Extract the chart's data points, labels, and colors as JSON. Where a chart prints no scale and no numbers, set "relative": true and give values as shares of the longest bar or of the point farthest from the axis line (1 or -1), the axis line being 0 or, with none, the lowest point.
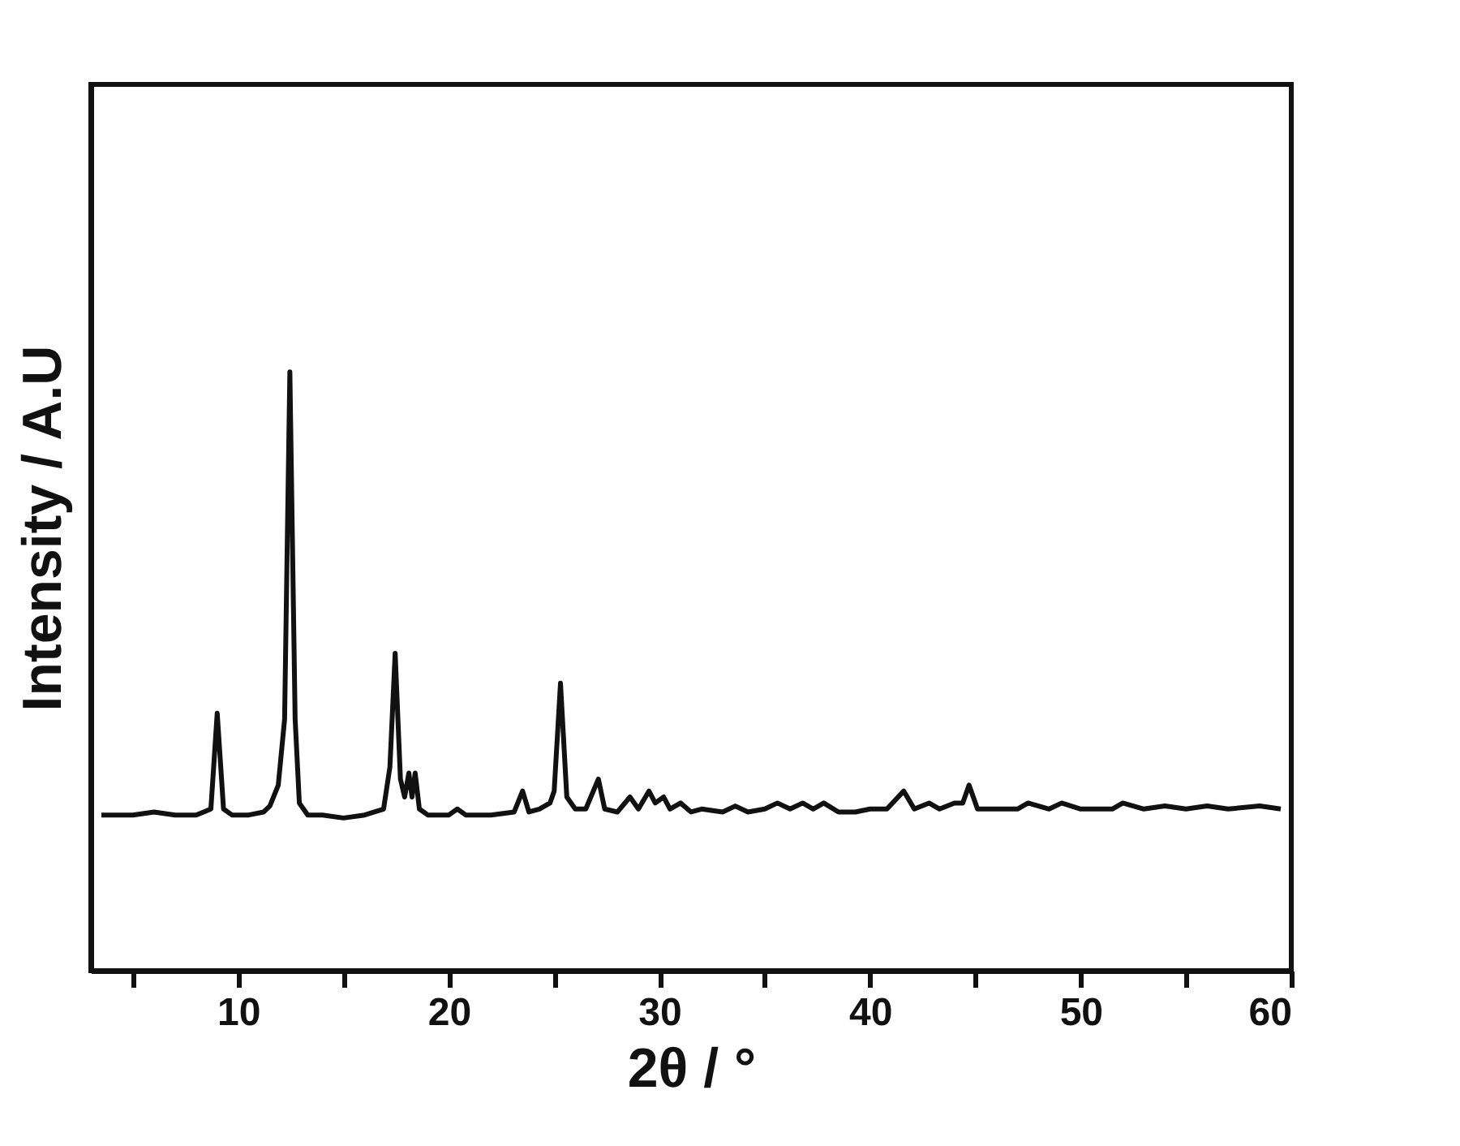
{
  "chart_data": {
    "type": "line",
    "xlabel": "2θ / °",
    "ylabel": "Intensity / A.U",
    "relative": true,
    "xlim": [
      3,
      60
    ],
    "xticks": [
      {
        "value": 5,
        "label": null
      },
      10,
      {
        "value": 15,
        "label": null
      },
      20,
      {
        "value": 25,
        "label": null
      },
      30,
      {
        "value": 35,
        "label": null
      },
      40,
      {
        "value": 45,
        "label": null
      },
      50,
      {
        "value": 55,
        "label": null
      },
      60
    ],
    "grid": false,
    "marker": "none",
    "line_style": "solid",
    "series": [
      {
        "color": "#111111",
        "x": [
          3.5,
          5,
          6,
          7,
          8,
          8.7,
          9.0,
          9.3,
          9.7,
          10.5,
          11.2,
          11.5,
          11.9,
          12.2,
          12.45,
          12.7,
          12.9,
          13.3,
          14,
          15,
          16,
          16.9,
          17.2,
          17.45,
          17.7,
          17.9,
          18.1,
          18.25,
          18.4,
          18.6,
          19,
          20,
          20.4,
          20.8,
          22,
          23.1,
          23.5,
          23.8,
          24.3,
          24.8,
          25.0,
          25.3,
          25.6,
          26,
          26.5,
          27.1,
          27.4,
          28,
          28.6,
          29,
          29.5,
          29.8,
          30.2,
          30.5,
          31,
          31.5,
          32,
          33,
          33.6,
          34.2,
          35,
          35.6,
          36.2,
          36.8,
          37.3,
          37.8,
          38.5,
          39.3,
          40,
          40.8,
          41.6,
          42.1,
          42.8,
          43.3,
          44.0,
          44.4,
          44.7,
          45.1,
          46,
          47,
          47.5,
          48.5,
          49.1,
          50,
          51.5,
          52,
          53,
          54,
          55,
          56,
          57,
          58.5,
          59.5
        ],
        "values": [
          0.26,
          0.26,
          0.265,
          0.26,
          0.26,
          0.27,
          0.43,
          0.27,
          0.26,
          0.26,
          0.265,
          0.275,
          0.31,
          0.42,
          1.0,
          0.42,
          0.28,
          0.26,
          0.26,
          0.255,
          0.26,
          0.27,
          0.34,
          0.53,
          0.32,
          0.29,
          0.33,
          0.29,
          0.33,
          0.27,
          0.26,
          0.26,
          0.27,
          0.26,
          0.26,
          0.265,
          0.3,
          0.265,
          0.27,
          0.28,
          0.3,
          0.48,
          0.29,
          0.27,
          0.27,
          0.32,
          0.27,
          0.265,
          0.29,
          0.27,
          0.3,
          0.28,
          0.29,
          0.27,
          0.28,
          0.265,
          0.27,
          0.265,
          0.275,
          0.265,
          0.27,
          0.28,
          0.27,
          0.28,
          0.27,
          0.28,
          0.265,
          0.265,
          0.27,
          0.27,
          0.3,
          0.27,
          0.28,
          0.27,
          0.28,
          0.28,
          0.31,
          0.27,
          0.27,
          0.27,
          0.28,
          0.27,
          0.28,
          0.27,
          0.27,
          0.28,
          0.27,
          0.275,
          0.27,
          0.275,
          0.27,
          0.275,
          0.27
        ]
      }
    ]
  }
}
